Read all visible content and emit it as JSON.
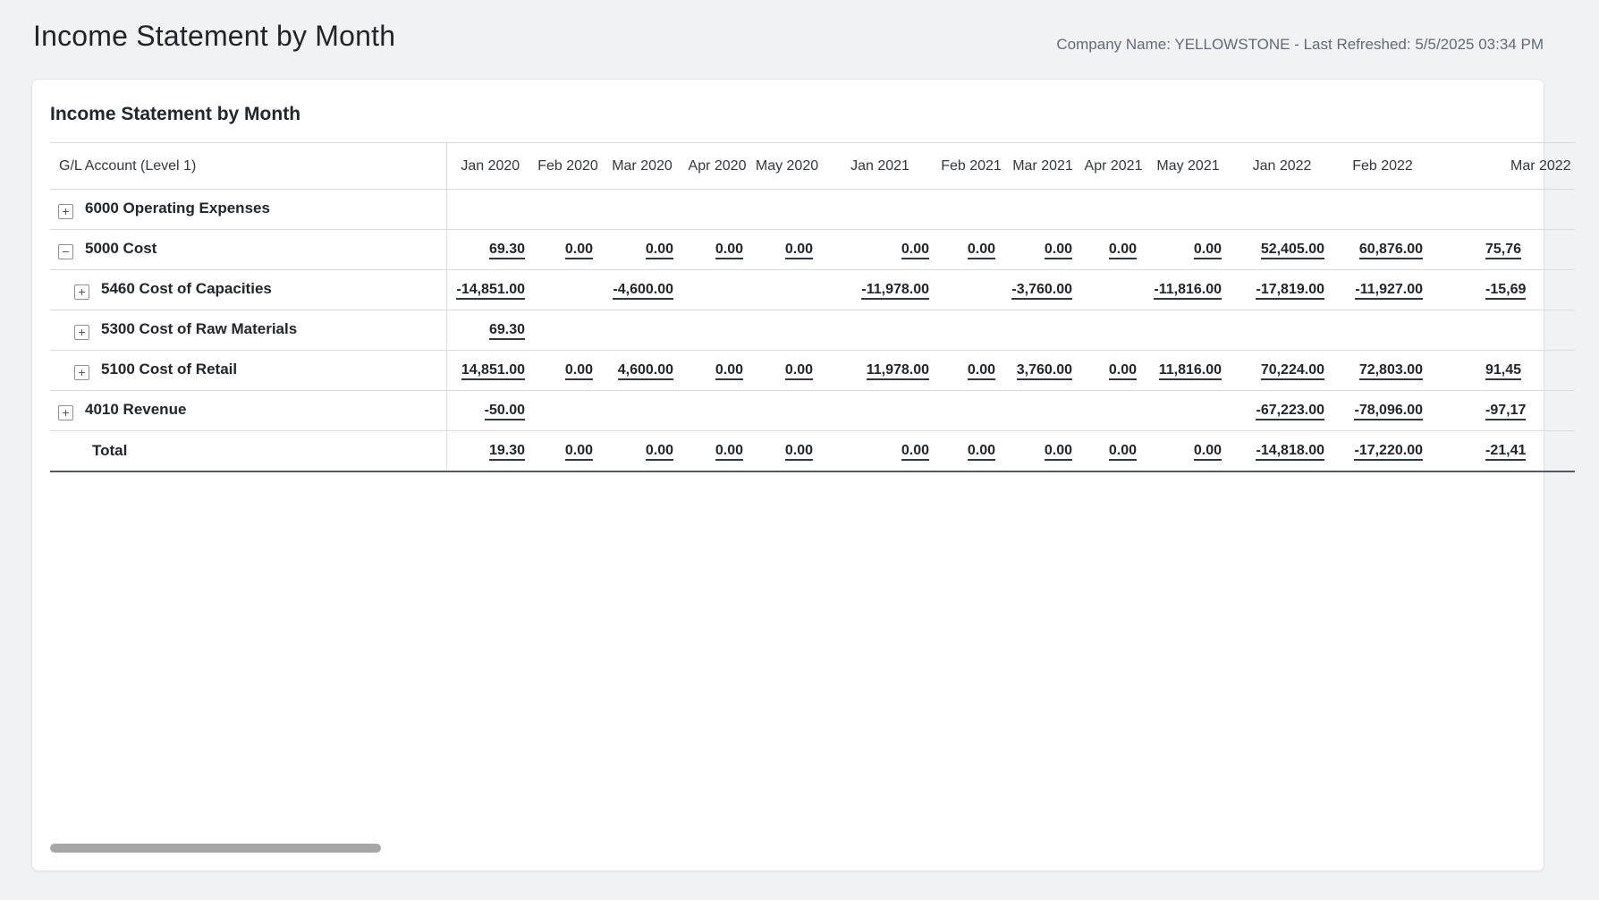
{
  "page": {
    "title": "Income Statement by Month",
    "company_info": "Company Name: YELLOWSTONE - Last Refreshed: 5/5/2025 03:34 PM"
  },
  "report": {
    "title": "Income Statement by Month",
    "account_column_header": "G/L Account (Level 1)",
    "columns": [
      "Jan 2020",
      "Feb 2020",
      "Mar 2020",
      "Apr 2020",
      "May 2020",
      "Jan 2021",
      "Feb 2021",
      "Mar 2021",
      "Apr 2021",
      "May 2021",
      "Jan 2022",
      "Feb 2022",
      "Mar 2022"
    ],
    "icons": {
      "expander_plus": "+",
      "expander_minus": "−"
    },
    "rows": [
      {
        "label": "6000 Operating Expenses",
        "level": 1,
        "expand": "plus",
        "values": [
          "",
          "",
          "",
          "",
          "",
          "",
          "",
          "",
          "",
          "",
          "",
          "",
          ""
        ]
      },
      {
        "label": "5000 Cost",
        "level": 1,
        "expand": "minus",
        "values": [
          "69.30",
          "0.00",
          "0.00",
          "0.00",
          "0.00",
          "0.00",
          "0.00",
          "0.00",
          "0.00",
          "0.00",
          "52,405.00",
          "60,876.00",
          "75,76"
        ]
      },
      {
        "label": "5460 Cost of Capacities",
        "level": 2,
        "expand": "plus",
        "values": [
          "-14,851.00",
          "",
          "-4,600.00",
          "",
          "",
          "-11,978.00",
          "",
          "-3,760.00",
          "",
          "-11,816.00",
          "-17,819.00",
          "-11,927.00",
          "-15,69"
        ]
      },
      {
        "label": "5300 Cost of Raw Materials",
        "level": 2,
        "expand": "plus",
        "values": [
          "69.30",
          "",
          "",
          "",
          "",
          "",
          "",
          "",
          "",
          "",
          "",
          "",
          ""
        ]
      },
      {
        "label": "5100 Cost of Retail",
        "level": 2,
        "expand": "plus",
        "values": [
          "14,851.00",
          "0.00",
          "4,600.00",
          "0.00",
          "0.00",
          "11,978.00",
          "0.00",
          "3,760.00",
          "0.00",
          "11,816.00",
          "70,224.00",
          "72,803.00",
          "91,45"
        ]
      },
      {
        "label": "4010 Revenue",
        "level": 1,
        "expand": "plus",
        "values": [
          "-50.00",
          "",
          "",
          "",
          "",
          "",
          "",
          "",
          "",
          "",
          "-67,223.00",
          "-78,096.00",
          "-97,17"
        ]
      },
      {
        "label": "Total",
        "level": 0,
        "expand": "none",
        "values": [
          "19.30",
          "0.00",
          "0.00",
          "0.00",
          "0.00",
          "0.00",
          "0.00",
          "0.00",
          "0.00",
          "0.00",
          "-14,818.00",
          "-17,220.00",
          "-21,41"
        ]
      }
    ]
  },
  "colors": {
    "page_background": "#f1f2f4",
    "card_background": "#ffffff",
    "text_primary": "#22262a",
    "text_muted": "#626b76",
    "scrollbar_thumb": "#a6a6a6"
  }
}
